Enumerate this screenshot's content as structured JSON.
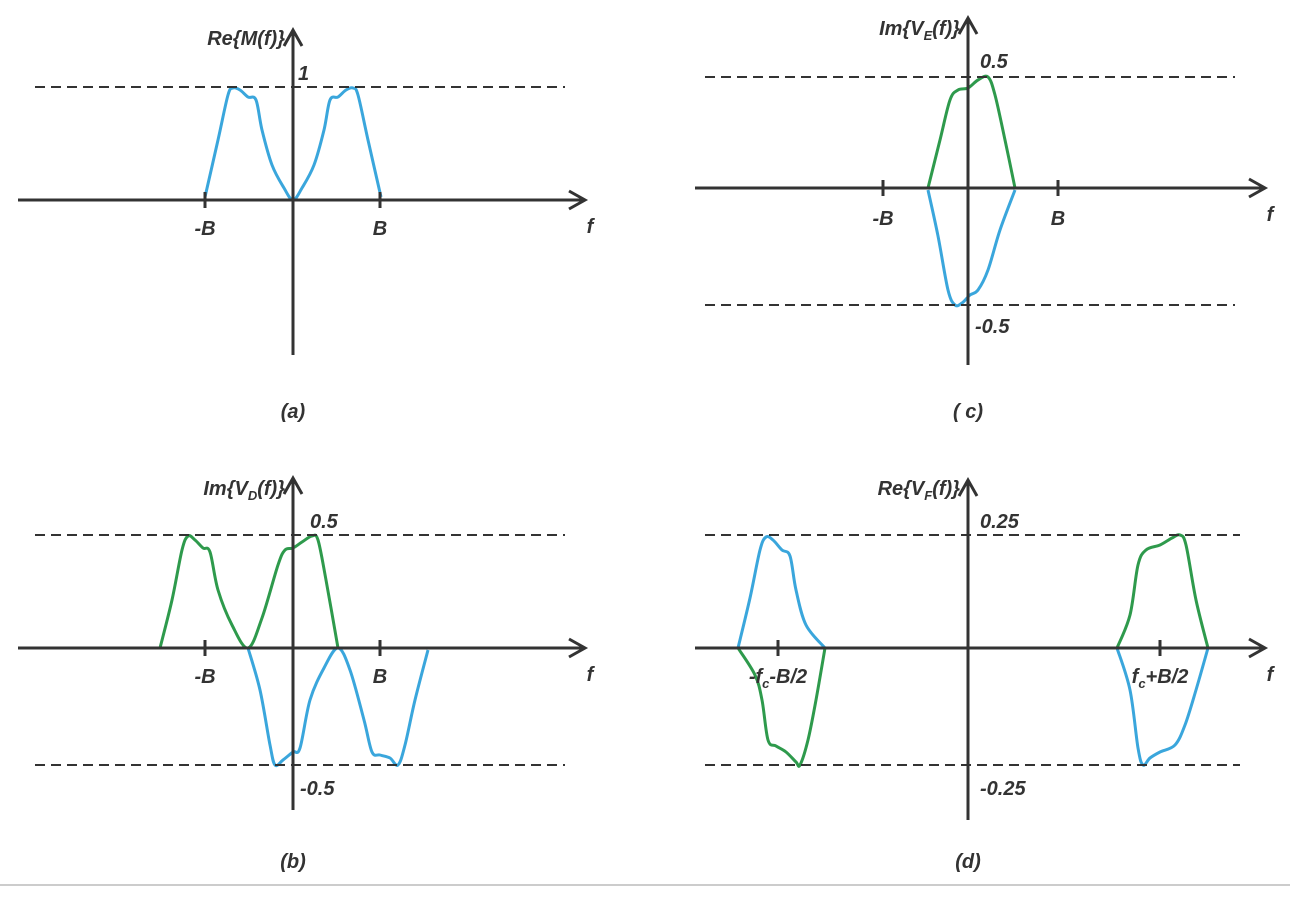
{
  "panels": [
    {
      "caption": "(a)",
      "y_label": [
        "Re{M(f)}"
      ],
      "x_label": "f",
      "ticks": [
        [
          "-B"
        ],
        [
          "B"
        ]
      ],
      "levels": [
        "1"
      ]
    },
    {
      "caption": "(b)",
      "y_label": [
        "Im{V",
        "D",
        "(f)}"
      ],
      "x_label": "f",
      "ticks": [
        [
          "-B"
        ],
        [
          "B"
        ]
      ],
      "levels": [
        "0.5",
        "-0.5"
      ]
    },
    {
      "caption": "( c)",
      "y_label": [
        "Im{V",
        "E",
        "(f)}"
      ],
      "x_label": "f",
      "ticks": [
        [
          "-B"
        ],
        [
          "B"
        ]
      ],
      "levels": [
        "0.5",
        "-0.5"
      ]
    },
    {
      "caption": "(d)",
      "y_label": [
        "Re{V",
        "F",
        "(f)}"
      ],
      "x_label": "f",
      "ticks": [
        [
          "-f",
          "c",
          "-B/2"
        ],
        [
          "f",
          "c",
          "+B/2"
        ]
      ],
      "levels": [
        "0.25",
        "-0.25"
      ]
    }
  ]
}
